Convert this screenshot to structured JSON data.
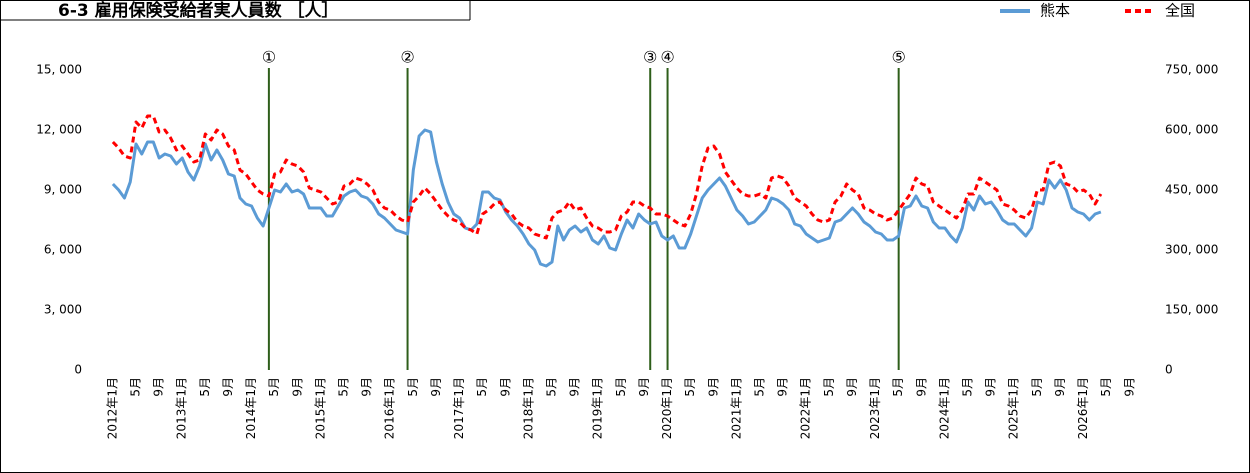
{
  "chart_data": {
    "type": "line",
    "title": "6-3 雇用保険受給者実人員数 ［人］",
    "categories": [
      "2012年1月",
      null,
      null,
      null,
      "5月",
      null,
      null,
      null,
      "9月",
      null,
      null,
      null,
      "2013年1月",
      null,
      null,
      null,
      "5月",
      null,
      null,
      null,
      "9月",
      null,
      null,
      null,
      "2014年1月",
      null,
      null,
      null,
      "5月",
      null,
      null,
      null,
      "9月",
      null,
      null,
      null,
      "2015年1月",
      null,
      null,
      null,
      "5月",
      null,
      null,
      null,
      "9月",
      null,
      null,
      null,
      "2016年1月",
      null,
      null,
      null,
      "5月",
      null,
      null,
      null,
      "9月",
      null,
      null,
      null,
      "2017年1月",
      null,
      null,
      null,
      "5月",
      null,
      null,
      null,
      "9月",
      null,
      null,
      null,
      "2018年1月",
      null,
      null,
      null,
      "5月",
      null,
      null,
      null,
      "9月",
      null,
      null,
      null,
      "2019年1月",
      null,
      null,
      null,
      "5月",
      null,
      null,
      null,
      "9月",
      null,
      null,
      null,
      "2020年1月",
      null,
      null,
      null,
      "5月",
      null,
      null,
      null,
      "9月",
      null,
      null,
      null,
      "2021年1月",
      null,
      null,
      null,
      "5月",
      null,
      null,
      null,
      "9月",
      null,
      null,
      null,
      "2022年1月",
      null,
      null,
      null,
      "5月",
      null,
      null,
      null,
      "9月",
      null,
      null,
      null,
      "2023年1月",
      null,
      null,
      null,
      "5月",
      null,
      null,
      null,
      "9月",
      null,
      null,
      null,
      "2024年1月",
      null,
      null,
      null,
      "5月",
      null,
      null,
      null,
      "9月",
      null,
      null,
      null,
      "2025年1月",
      null,
      null,
      null,
      "5月",
      null,
      null,
      null,
      "9月",
      null,
      null,
      null,
      "2026年1月",
      null,
      null,
      null,
      "5月",
      null,
      null,
      null,
      "9月",
      null,
      null,
      null
    ],
    "series": [
      {
        "name": "熊本",
        "color": "#5b9bd5",
        "values": [
          9300,
          9000,
          8600,
          9400,
          11300,
          10800,
          11400,
          11400,
          10600,
          10800,
          10700,
          10300,
          10600,
          9900,
          9500,
          10200,
          11300,
          10500,
          11000,
          10500,
          9800,
          9700,
          8600,
          8300,
          8200,
          7600,
          7200,
          8100,
          9000,
          8900,
          9300,
          8900,
          9000,
          8800,
          8100,
          8100,
          8100,
          7700,
          7700,
          8200,
          8700,
          8900,
          9000,
          8700,
          8600,
          8300,
          7800,
          7600,
          7300,
          7000,
          6900,
          6800,
          10000,
          11700,
          12000,
          11900,
          10400,
          9300,
          8400,
          7800,
          7600,
          7100,
          7000,
          7300,
          8900,
          8900,
          8600,
          8500,
          7900,
          7500,
          7200,
          6800,
          6300,
          6000,
          5300,
          5200,
          5400,
          7200,
          6500,
          7000,
          7200,
          6900,
          7100,
          6500,
          6300,
          6700,
          6100,
          6000,
          6800,
          7500,
          7100,
          7800,
          7500,
          7300,
          7400,
          6700,
          6500,
          6700,
          6100,
          6100,
          6800,
          7700,
          8600,
          9000,
          9300,
          9600,
          9200,
          8600,
          8000,
          7700,
          7300,
          7400,
          7700,
          8000,
          8600,
          8500,
          8300,
          8000,
          7300,
          7200,
          6800,
          6600,
          6400,
          6500,
          6600,
          7400,
          7500,
          7800,
          8100,
          7800,
          7400,
          7200,
          6900,
          6800,
          6500,
          6500,
          6700,
          8100,
          8200,
          8700,
          8200,
          8100,
          7400,
          7100,
          7100,
          6700,
          6400,
          7100,
          8400,
          8000,
          8700,
          8300,
          8400,
          8000,
          7500,
          7300,
          7300,
          7000,
          6700,
          7100,
          8400,
          8300,
          9500,
          9100,
          9500,
          9000,
          8100,
          7900,
          7800,
          7500,
          7800,
          7900,
          null,
          null,
          null,
          null,
          null,
          null,
          null,
          null
        ]
      },
      {
        "name": "全国",
        "color": "#ff0000",
        "axis": "y2",
        "dashed": true,
        "values": [
          570000,
          555000,
          535000,
          530000,
          620000,
          605000,
          635000,
          635000,
          595000,
          600000,
          580000,
          550000,
          560000,
          540000,
          520000,
          525000,
          590000,
          575000,
          600000,
          590000,
          560000,
          550000,
          500000,
          490000,
          470000,
          450000,
          440000,
          435000,
          490000,
          495000,
          525000,
          515000,
          510000,
          495000,
          455000,
          450000,
          445000,
          430000,
          415000,
          420000,
          460000,
          465000,
          480000,
          475000,
          465000,
          450000,
          420000,
          405000,
          400000,
          385000,
          375000,
          370000,
          420000,
          435000,
          455000,
          440000,
          420000,
          400000,
          385000,
          375000,
          370000,
          355000,
          350000,
          340000,
          390000,
          400000,
          415000,
          420000,
          400000,
          390000,
          370000,
          360000,
          355000,
          340000,
          335000,
          330000,
          380000,
          395000,
          400000,
          420000,
          400000,
          405000,
          380000,
          360000,
          355000,
          345000,
          345000,
          350000,
          385000,
          395000,
          420000,
          420000,
          410000,
          405000,
          390000,
          390000,
          385000,
          375000,
          365000,
          360000,
          390000,
          440000,
          510000,
          555000,
          560000,
          540000,
          495000,
          475000,
          455000,
          440000,
          435000,
          435000,
          440000,
          430000,
          480000,
          485000,
          480000,
          460000,
          430000,
          420000,
          410000,
          390000,
          375000,
          370000,
          375000,
          420000,
          435000,
          465000,
          450000,
          440000,
          405000,
          400000,
          390000,
          385000,
          375000,
          380000,
          400000,
          420000,
          440000,
          480000,
          465000,
          460000,
          420000,
          410000,
          400000,
          390000,
          380000,
          400000,
          440000,
          440000,
          480000,
          470000,
          460000,
          450000,
          415000,
          410000,
          400000,
          385000,
          380000,
          400000,
          450000,
          450000,
          515000,
          520000,
          510000,
          465000,
          460000,
          445000,
          450000,
          440000,
          415000,
          440000,
          null,
          null,
          null,
          null,
          null,
          null,
          null,
          null
        ]
      }
    ],
    "ylim": [
      0,
      15000
    ],
    "yticks": [
      0,
      {
        "value": 3000,
        "label": "3, 000"
      },
      {
        "value": 6000,
        "label": "6, 000"
      },
      {
        "value": 9000,
        "label": "9, 000"
      },
      {
        "value": 12000,
        "label": "12, 000"
      },
      {
        "value": 15000,
        "label": "15, 000"
      }
    ],
    "y2lim": [
      0,
      750000
    ],
    "y2ticks": [
      0,
      {
        "value": 150000,
        "label": "150, 000"
      },
      {
        "value": 300000,
        "label": "300, 000"
      },
      {
        "value": 450000,
        "label": "450, 000"
      },
      {
        "value": 600000,
        "label": "600, 000"
      },
      {
        "value": 750000,
        "label": "750, 000"
      }
    ],
    "grid": false,
    "annotation_color": "#2e5e1a",
    "annotations": [
      {
        "label": "①",
        "category_index": 27
      },
      {
        "label": "②",
        "category_index": 51
      },
      {
        "label": "③",
        "category_index": 93
      },
      {
        "label": "④",
        "category_index": 96
      },
      {
        "label": "⑤",
        "category_index": 136
      }
    ]
  }
}
